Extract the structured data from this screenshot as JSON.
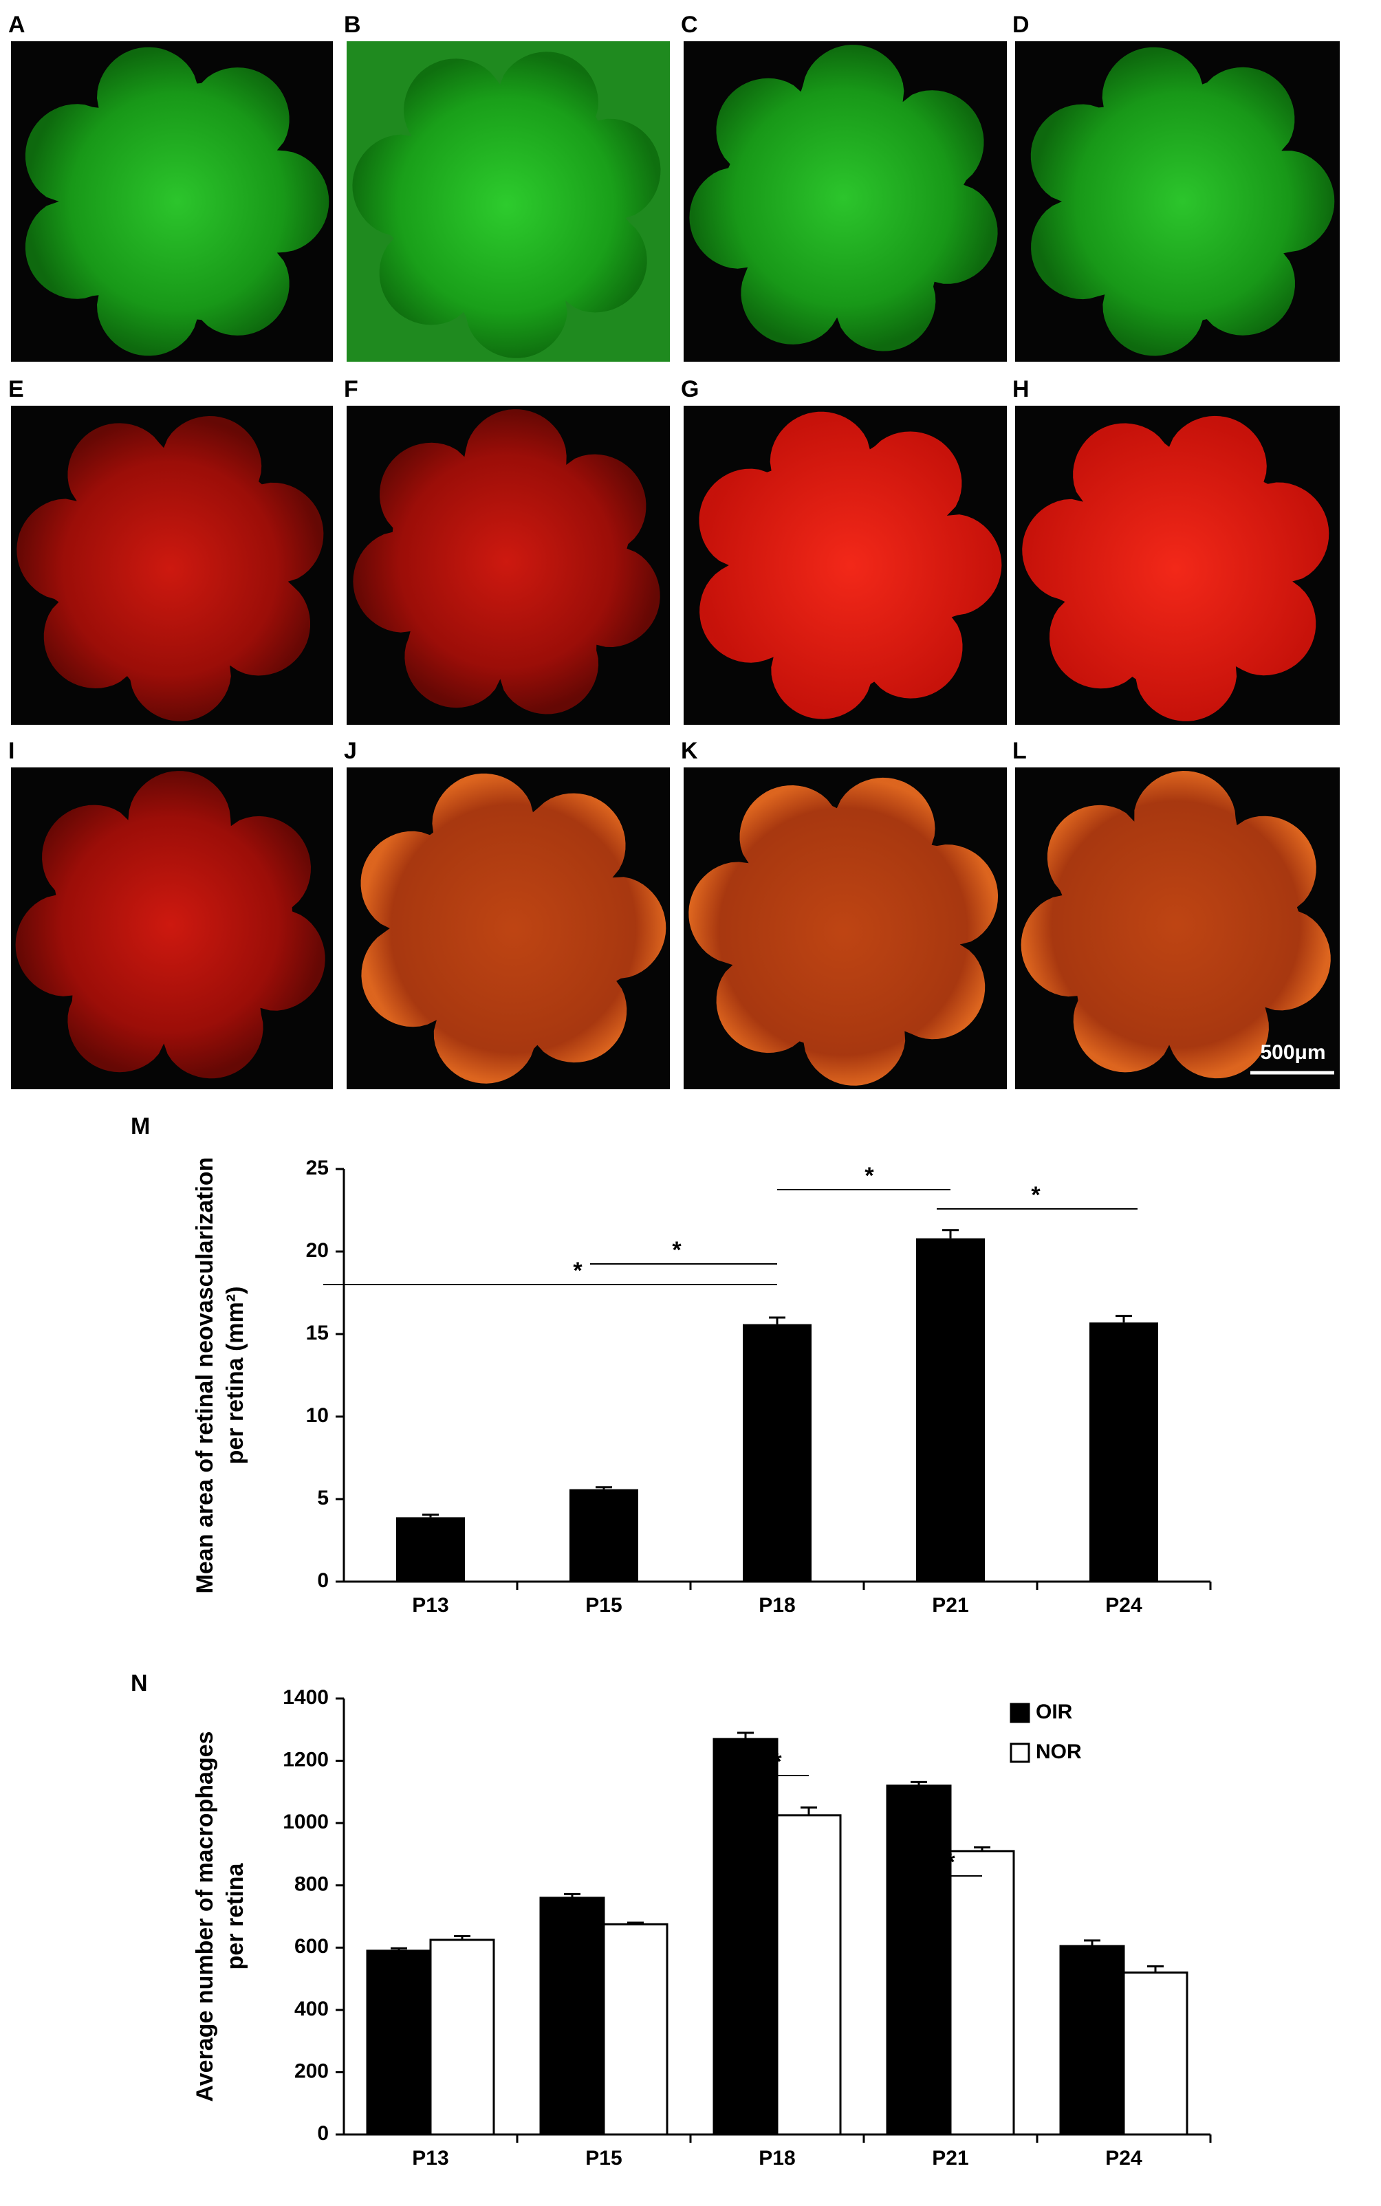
{
  "panels": {
    "labels": [
      "A",
      "B",
      "C",
      "D",
      "E",
      "F",
      "G",
      "H",
      "I",
      "J",
      "K",
      "L"
    ],
    "scale_bar": "500μm"
  },
  "chart_data": [
    {
      "type": "bar",
      "panel_label": "M",
      "ylabel": [
        "Mean area of retinal neovascularization",
        "per retina (mm²)"
      ],
      "categories": [
        "P13",
        "P15",
        "P18",
        "P21",
        "P24"
      ],
      "values": [
        3.9,
        5.6,
        15.6,
        20.8,
        15.7
      ],
      "errors": [
        0.15,
        0.12,
        0.4,
        0.5,
        0.4
      ],
      "color": "#000000",
      "ylim": [
        0,
        25
      ],
      "yticks": [
        0,
        5,
        10,
        15,
        20,
        25
      ],
      "annotations": [
        "*",
        "*",
        "*",
        "*"
      ]
    },
    {
      "type": "grouped-bar",
      "panel_label": "N",
      "ylabel": [
        "Average number of macrophages",
        "per retina"
      ],
      "categories": [
        "P13",
        "P15",
        "P18",
        "P21",
        "P24"
      ],
      "series": [
        {
          "name": "OIR",
          "color": "#000000",
          "values": [
            590,
            760,
            1270,
            1120,
            605
          ],
          "errors": [
            8,
            12,
            20,
            12,
            18
          ]
        },
        {
          "name": "NOR",
          "color": "#ffffff",
          "values": [
            625,
            675,
            1025,
            910,
            520
          ],
          "errors": [
            12,
            5,
            25,
            12,
            20
          ]
        }
      ],
      "ylim": [
        0,
        1400
      ],
      "yticks": [
        0,
        200,
        400,
        600,
        800,
        1000,
        1200,
        1400
      ],
      "legend": "upper right",
      "annotations": [
        "*",
        "*"
      ]
    }
  ]
}
